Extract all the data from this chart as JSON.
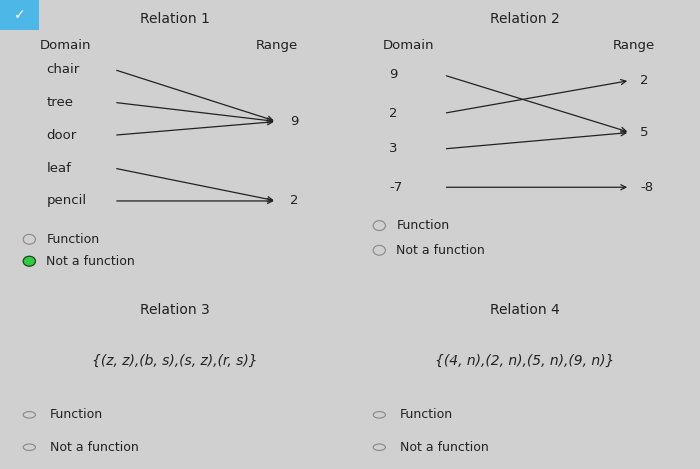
{
  "outer_bg": "#d0d0d0",
  "cell_bg": "#f2f2f2",
  "title_fontsize": 10,
  "label_fontsize": 9.5,
  "text_fontsize": 9.5,
  "radio_fontsize": 9,
  "rel1": {
    "title": "Relation 1",
    "domain_label": "Domain",
    "range_label": "Range",
    "domain": [
      "chair",
      "tree",
      "door",
      "leaf",
      "pencil"
    ],
    "range": [
      "9",
      "2"
    ],
    "arrows": [
      [
        0,
        0
      ],
      [
        1,
        0
      ],
      [
        2,
        0
      ],
      [
        3,
        1
      ],
      [
        4,
        1
      ]
    ],
    "sel_function": false,
    "sel_not_function": true
  },
  "rel2": {
    "title": "Relation 2",
    "domain_label": "Domain",
    "range_label": "Range",
    "domain": [
      "9",
      "2",
      "3",
      "-7"
    ],
    "range": [
      "2",
      "5",
      "-8"
    ],
    "arrows": [
      [
        0,
        1
      ],
      [
        1,
        0
      ],
      [
        2,
        1
      ],
      [
        3,
        2
      ]
    ],
    "sel_function": false,
    "sel_not_function": false
  },
  "rel3": {
    "title": "Relation 3",
    "set_text": "{(z, z),(b, s),(s, z),(r, s)}",
    "sel_function": false,
    "sel_not_function": false
  },
  "rel4": {
    "title": "Relation 4",
    "set_text": "{(4, n),(2, n),(5, n),(9, n)}",
    "sel_function": false,
    "sel_not_function": false
  },
  "arrow_color": "#222222",
  "text_color": "#222222",
  "border_color": "#aaaaaa",
  "radio_empty_color": "#888888",
  "radio_filled_color": "#2ecc40",
  "checkmark_bg": "#4db8e8"
}
